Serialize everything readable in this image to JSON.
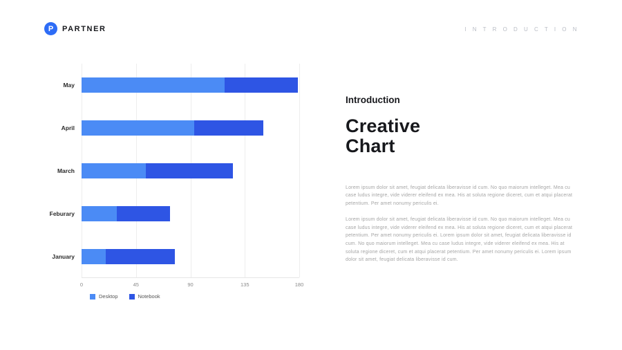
{
  "header": {
    "logo_text": "PARTNER",
    "logo_initial": "P",
    "page_label": "I N T R O D U C T I O N"
  },
  "content": {
    "kicker": "Introduction",
    "title_line1": "Creative",
    "title_line2": "Chart",
    "paragraph1": "Lorem ipsum dolor sit amet, feugiat delicata liberavisse id cum. No quo maiorum intelleget. Mea cu case ludus integre, vide viderer eleifend ex mea. His at soluta regione diceret, cum et atqui placerat petentium. Per amet nonumy periculis ei.",
    "paragraph2": "Lorem ipsum dolor sit amet, feugiat delicata liberavisse id cum. No quo maiorum intelleget. Mea cu case ludus integre, vide viderer eleifend ex mea. His at soluta regione diceret, cum et atqui placerat petentium. Per amet nonumy periculis ei. Lorem ipsum dolor sit amet, feugiat delicata liberavisse id cum. No quo maiorum intelleget. Mea cu case ludus integre, vide viderer eleifend ex mea. His at soluta regione diceret, cum et atqui placerat petentium. Per amet nonumy periculis ei. Lorem ipsum dolor sit amet, feugiat delicata liberavisse id cum."
  },
  "chart_data": {
    "type": "bar",
    "orientation": "horizontal",
    "stacked": true,
    "categories": [
      "May",
      "April",
      "March",
      "Feburary",
      "January"
    ],
    "series": [
      {
        "name": "Desktop",
        "color": "#4b8bf5",
        "values": [
          118,
          93,
          53,
          29,
          20
        ]
      },
      {
        "name": "Notebook",
        "color": "#2e55e4",
        "values": [
          61,
          57,
          72,
          44,
          57
        ]
      }
    ],
    "totals": [
      179,
      150,
      125,
      73,
      77
    ],
    "xlim": [
      0,
      180
    ],
    "xticks": [
      0,
      45,
      90,
      135,
      180
    ],
    "grid": true,
    "legend_position": "bottom",
    "title": "",
    "xlabel": "",
    "ylabel": ""
  }
}
